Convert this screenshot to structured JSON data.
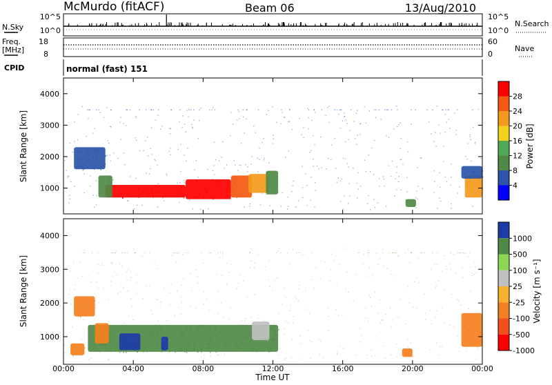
{
  "header": {
    "station": "McMurdo (fitACF)",
    "beam": "Beam 06",
    "date": "13/Aug/2010"
  },
  "nsky_panel": {
    "left_label": "N.Sky",
    "right_label": "N.Search",
    "left_ticks": [
      "10^5",
      "10^0"
    ],
    "right_ticks": [
      "10^5",
      "10^0"
    ]
  },
  "freq_panel": {
    "left_label": "Freq.",
    "left_unit": "[MHz]",
    "left_ticks": [
      "18",
      "8"
    ],
    "right_label": "Nave",
    "right_ticks": [
      "60",
      "0"
    ]
  },
  "cpid_panel": {
    "label": "CPID",
    "text": "normal (fast) 151"
  },
  "time_axis": {
    "label": "Time UT",
    "ticks": [
      "00:00",
      "04:00",
      "08:00",
      "12:00",
      "16:00",
      "20:00",
      "00:00"
    ]
  },
  "colors": {
    "power": [
      "#0000ff",
      "#2a55a8",
      "#4f8a45",
      "#4faa55",
      "#f2d21e",
      "#f59a1e",
      "#f25a10",
      "#ff0000"
    ],
    "velocity": [
      "#ff0000",
      "#f2501a",
      "#f58020",
      "#f5b030",
      "#c0c0c0",
      "#8cd655",
      "#4f8a45",
      "#1e3ca8"
    ]
  },
  "chart_data": [
    {
      "type": "heatmap",
      "title": "",
      "xlabel": "Time UT",
      "ylabel": "Slant Range [km]",
      "x_unit": "hours UT",
      "xlim": [
        0,
        24
      ],
      "ylim": [
        180,
        4500
      ],
      "y_ticks": [
        "1000",
        "2000",
        "3000",
        "4000"
      ],
      "colorbar_label": "Power [dB]",
      "colorbar_ticks": [
        "4",
        "8",
        "12",
        "16",
        "20",
        "24",
        "28"
      ],
      "blobs": [
        {
          "t0": 2.4,
          "t1": 7.0,
          "r0": 700,
          "r1": 1100,
          "value": 28
        },
        {
          "t0": 7.0,
          "t1": 9.6,
          "r0": 650,
          "r1": 1280,
          "value": 28
        },
        {
          "t0": 9.6,
          "t1": 10.8,
          "r0": 700,
          "r1": 1400,
          "value": 26
        },
        {
          "t0": 10.6,
          "t1": 11.8,
          "r0": 850,
          "r1": 1450,
          "value": 20
        },
        {
          "t0": 11.6,
          "t1": 12.3,
          "r0": 800,
          "r1": 1550,
          "value": 12
        },
        {
          "t0": 0.6,
          "t1": 2.4,
          "r0": 1600,
          "r1": 2300,
          "value": 8
        },
        {
          "t0": 2.0,
          "t1": 2.8,
          "r0": 700,
          "r1": 1400,
          "value": 12
        },
        {
          "t0": 23.0,
          "t1": 24.0,
          "r0": 700,
          "r1": 1400,
          "value": 20
        },
        {
          "t0": 22.8,
          "t1": 24.0,
          "r0": 1300,
          "r1": 1700,
          "value": 6
        },
        {
          "t0": 19.6,
          "t1": 20.2,
          "r0": 400,
          "r1": 650,
          "value": 12
        }
      ]
    },
    {
      "type": "heatmap",
      "title": "",
      "xlabel": "Time UT",
      "ylabel": "Slant Range [km]",
      "x_unit": "hours UT",
      "xlim": [
        0,
        24
      ],
      "ylim": [
        180,
        4500
      ],
      "y_ticks": [
        "1000",
        "2000",
        "3000",
        "4000"
      ],
      "colorbar_label": "Velocity [m s⁻¹]",
      "colorbar_ticks": [
        "1000",
        "500",
        "100",
        "25",
        "-25",
        "-100",
        "-500",
        "-1000"
      ],
      "blobs": [
        {
          "t0": 1.4,
          "t1": 12.3,
          "r0": 550,
          "r1": 1350,
          "value": 300
        },
        {
          "t0": 3.2,
          "t1": 4.4,
          "r0": 600,
          "r1": 1100,
          "value": 1000
        },
        {
          "t0": 5.6,
          "t1": 6.0,
          "r0": 600,
          "r1": 1000,
          "value": 1000
        },
        {
          "t0": 10.8,
          "t1": 11.8,
          "r0": 900,
          "r1": 1450,
          "value": 0
        },
        {
          "t0": 0.6,
          "t1": 1.8,
          "r0": 1600,
          "r1": 2200,
          "value": -100
        },
        {
          "t0": 0.4,
          "t1": 1.2,
          "r0": 450,
          "r1": 800,
          "value": -300
        },
        {
          "t0": 22.8,
          "t1": 24.0,
          "r0": 700,
          "r1": 1700,
          "value": -100
        },
        {
          "t0": 19.4,
          "t1": 20.0,
          "r0": 400,
          "r1": 650,
          "value": -300
        },
        {
          "t0": 1.8,
          "t1": 2.6,
          "r0": 800,
          "r1": 1400,
          "value": -100
        }
      ]
    }
  ]
}
